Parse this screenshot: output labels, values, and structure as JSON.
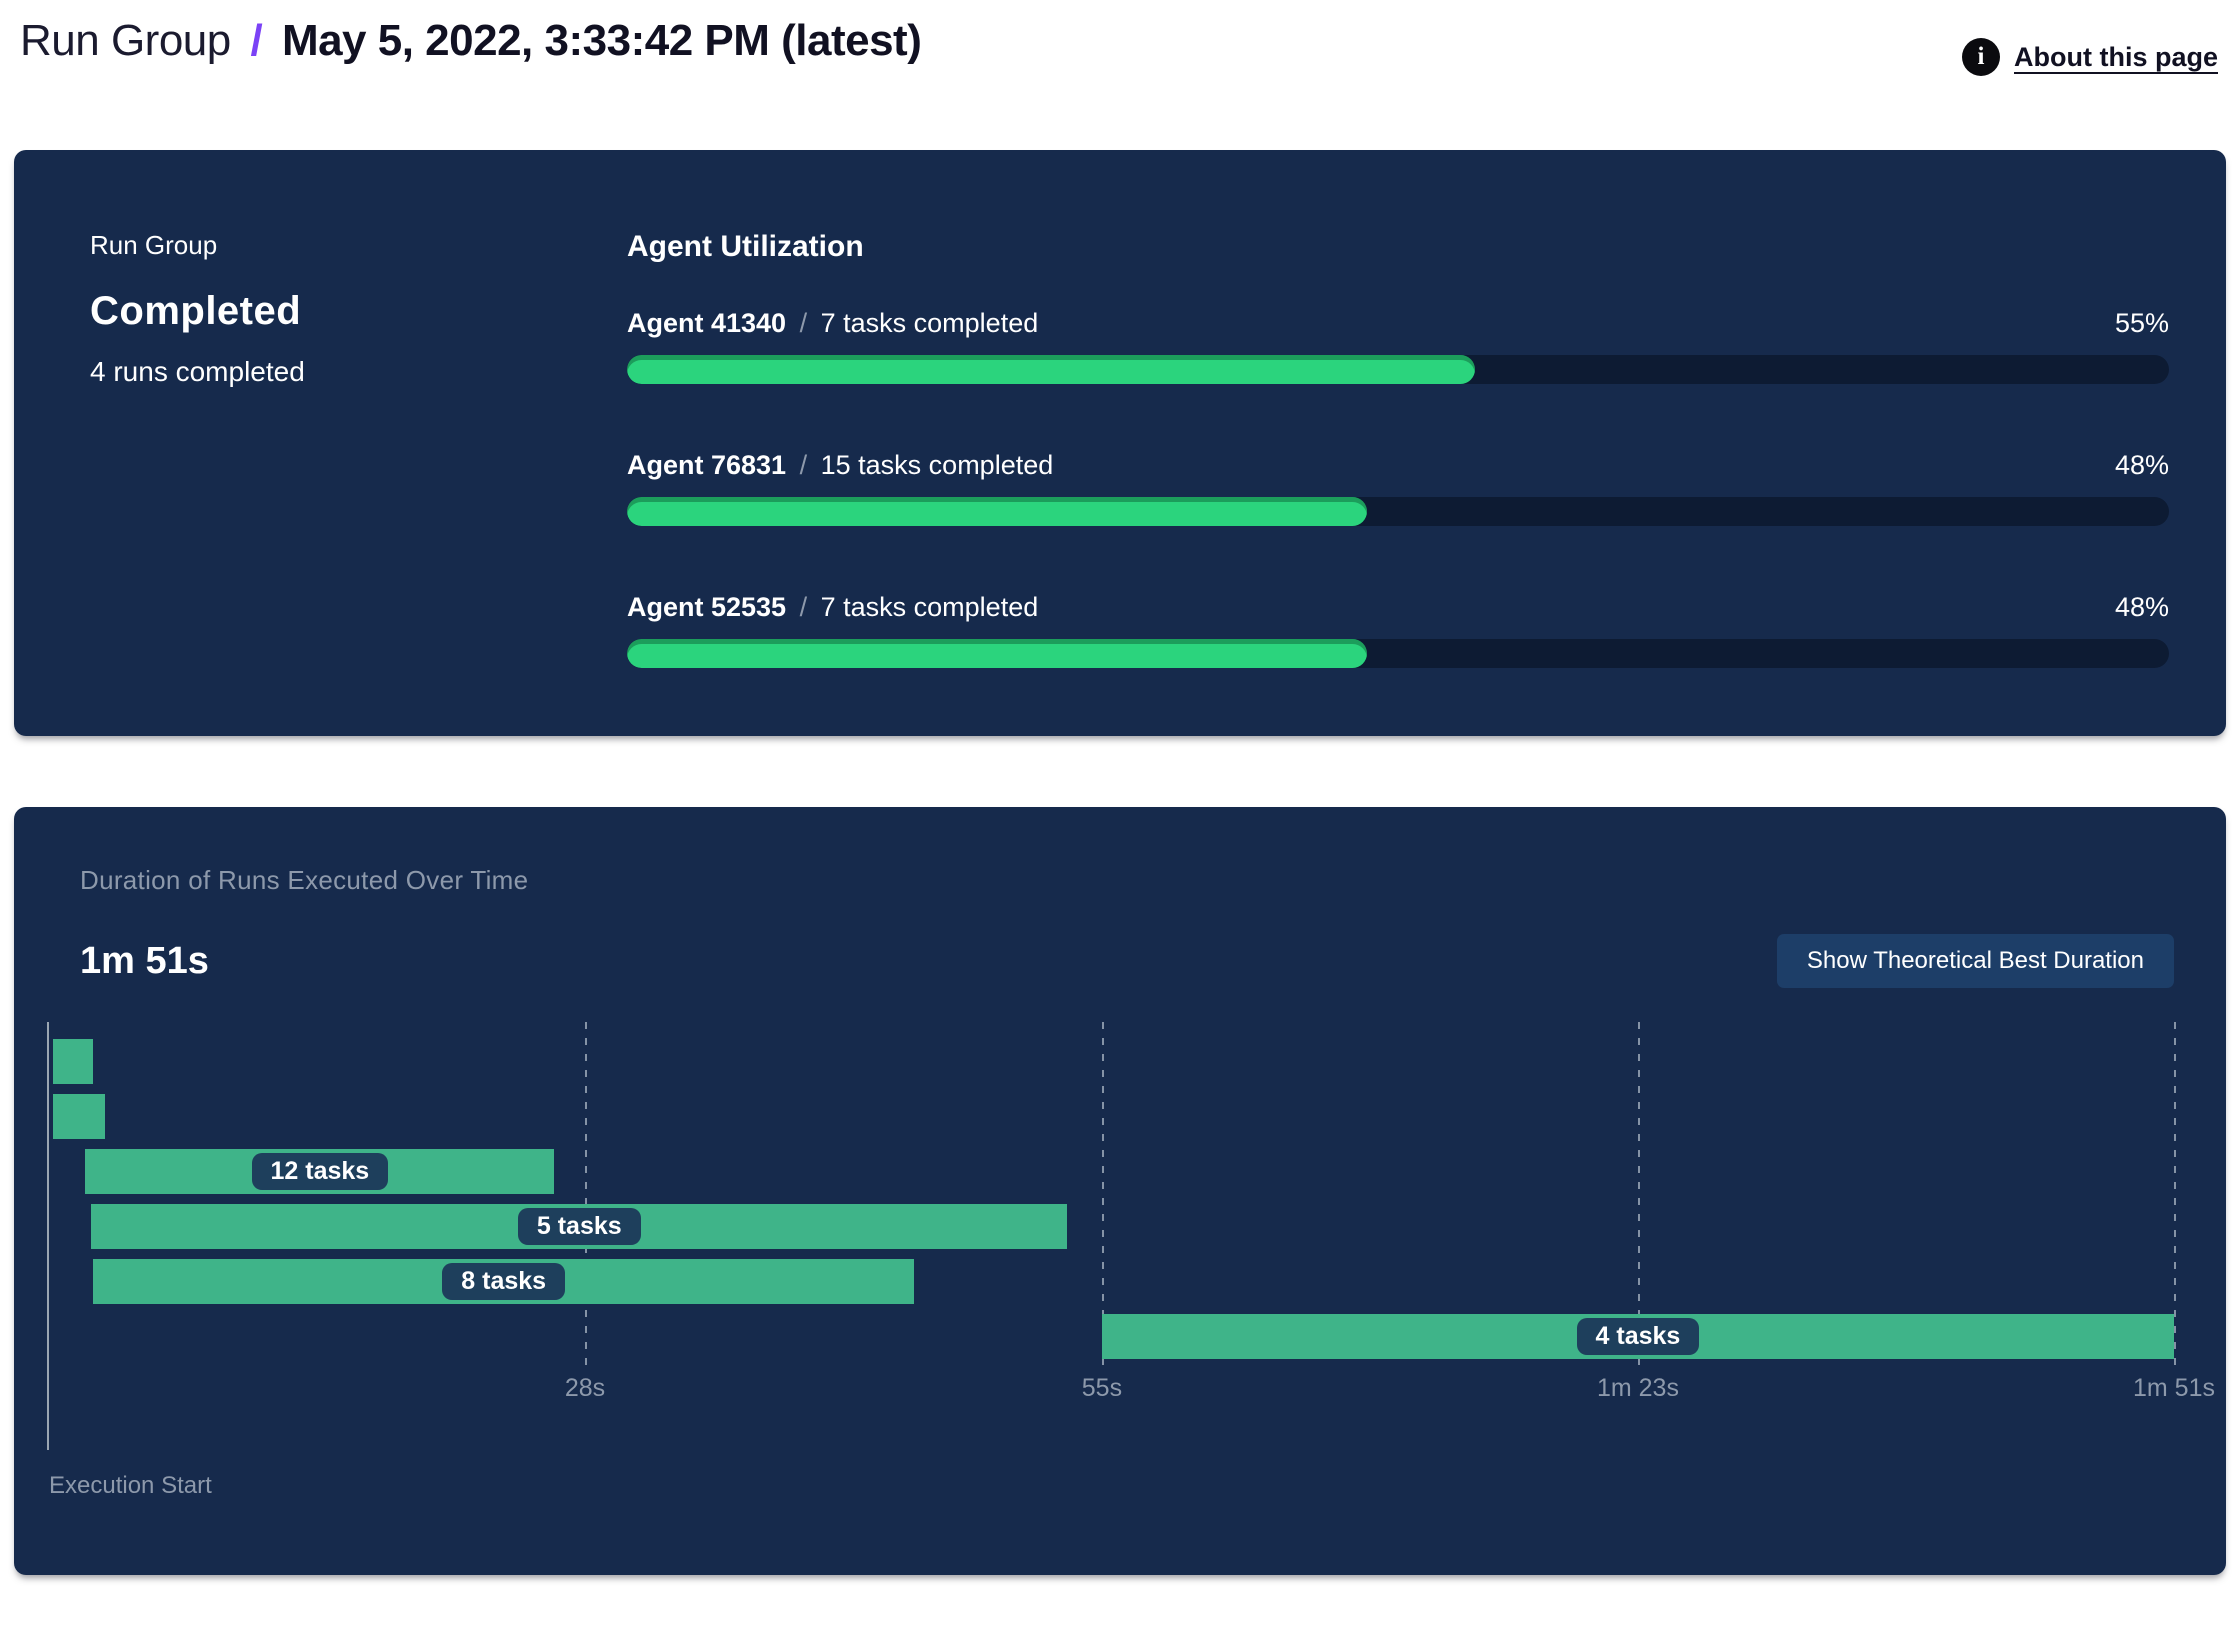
{
  "header": {
    "title_prefix": "Run Group",
    "separator": "/",
    "title_date": "May 5, 2022, 3:33:42 PM (latest)",
    "info_icon_glyph": "i",
    "about_link": "About this page"
  },
  "run_group_panel": {
    "label": "Run Group",
    "status": "Completed",
    "runs_summary": "4 runs completed",
    "section_title": "Agent Utilization",
    "agents": [
      {
        "name": "Agent 41340",
        "separator": "/",
        "tasks": "7 tasks completed",
        "utilization_pct": 55,
        "utilization_label": "55%"
      },
      {
        "name": "Agent 76831",
        "separator": "/",
        "tasks": "15 tasks completed",
        "utilization_pct": 48,
        "utilization_label": "48%"
      },
      {
        "name": "Agent 52535",
        "separator": "/",
        "tasks": "7 tasks completed",
        "utilization_pct": 48,
        "utilization_label": "48%"
      }
    ]
  },
  "duration_panel": {
    "title": "Duration of Runs Executed Over Time",
    "total_duration": "1m 51s",
    "button_label": "Show Theoretical Best Duration",
    "x_axis_label": "Execution Start"
  },
  "colors": {
    "accent_purple": "#7b42f6",
    "panel_bg": "#162a4c",
    "progress_green": "#2bd47d",
    "progress_track": "#0d1b33",
    "gantt_green": "#3fb489",
    "pill_bg": "#1e3f5c",
    "button_bg": "#1d3e68",
    "muted_text": "#8d99ab"
  },
  "chart_data": [
    {
      "type": "bar",
      "title": "Agent Utilization",
      "categories": [
        "Agent 41340",
        "Agent 76831",
        "Agent 52535"
      ],
      "values": [
        55,
        48,
        48
      ],
      "tasks_completed": [
        7,
        15,
        7
      ],
      "value_unit": "%",
      "xlim": [
        0,
        100
      ],
      "orientation": "horizontal"
    },
    {
      "type": "bar",
      "subtype": "gantt",
      "title": "Duration of Runs Executed Over Time",
      "total_duration_label": "1m 51s",
      "xlabel": "Execution Start",
      "time_axis_max_s": 111,
      "ticks": [
        {
          "t": 28,
          "label": "28s"
        },
        {
          "t": 55,
          "label": "55s"
        },
        {
          "t": 83,
          "label": "1m 23s"
        },
        {
          "t": 111,
          "label": "1m 51s"
        }
      ],
      "bars": [
        {
          "label": "",
          "start_s": 0.2,
          "end_s": 2.3
        },
        {
          "label": "",
          "start_s": 0.2,
          "end_s": 2.9
        },
        {
          "label": "12 tasks",
          "start_s": 1.9,
          "end_s": 26.4
        },
        {
          "label": "5 tasks",
          "start_s": 2.2,
          "end_s": 53.2
        },
        {
          "label": "8 tasks",
          "start_s": 2.3,
          "end_s": 45.2
        },
        {
          "label": "4 tasks",
          "start_s": 55,
          "end_s": 111
        }
      ],
      "grid": true,
      "legend": false
    }
  ]
}
